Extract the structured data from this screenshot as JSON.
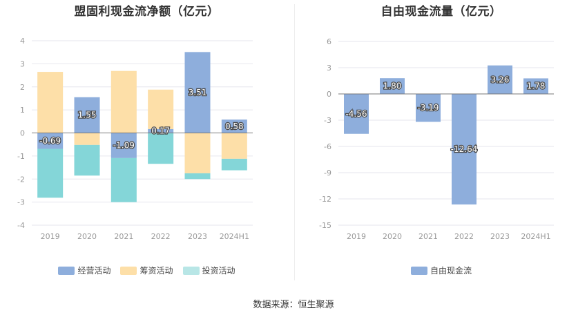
{
  "colors": {
    "operating": "#8eaedc",
    "financing": "#fddfa8",
    "investing": "#84d6d8",
    "investing_legend": "#b8e6e6",
    "fcf": "#8eaedc",
    "grid": "#e6e6ee",
    "axis_text": "#999999"
  },
  "source_text": "数据来源：恒生聚源",
  "chart_data": [
    {
      "type": "bar",
      "stacked": true,
      "title": "盟固利现金流净额（亿元）",
      "categories": [
        "2019",
        "2020",
        "2021",
        "2022",
        "2023",
        "2024H1"
      ],
      "ylim": [
        -4,
        4
      ],
      "yticks": [
        -4,
        -3,
        -2,
        -1,
        0,
        1,
        2,
        3,
        4
      ],
      "grid": true,
      "legend_position": "bottom",
      "series": [
        {
          "name": "经营活动",
          "values": [
            -0.69,
            1.55,
            -1.09,
            0.17,
            3.51,
            0.58
          ]
        },
        {
          "name": "筹资活动",
          "values": [
            2.65,
            -0.52,
            2.69,
            1.71,
            -1.75,
            -1.12
          ]
        },
        {
          "name": "投资活动",
          "values": [
            -2.12,
            -1.33,
            -1.91,
            -1.34,
            -0.25,
            -0.5
          ]
        }
      ],
      "data_labels": [
        "-0.69",
        "1.55",
        "-1.09",
        "0.17",
        "3.51",
        "0.58"
      ]
    },
    {
      "type": "bar",
      "title": "自由现金流量（亿元）",
      "categories": [
        "2019",
        "2020",
        "2021",
        "2022",
        "2023",
        "2024H1"
      ],
      "ylim": [
        -15,
        6
      ],
      "yticks": [
        -15,
        -12,
        -9,
        -6,
        -3,
        0,
        3,
        6
      ],
      "grid": true,
      "legend_position": "bottom",
      "series": [
        {
          "name": "自由现金流",
          "values": [
            -4.56,
            1.8,
            -3.19,
            -12.64,
            3.26,
            1.78
          ]
        }
      ],
      "data_labels": [
        "-4.56",
        "1.80",
        "-3.19",
        "-12.64",
        "3.26",
        "1.78"
      ]
    }
  ]
}
